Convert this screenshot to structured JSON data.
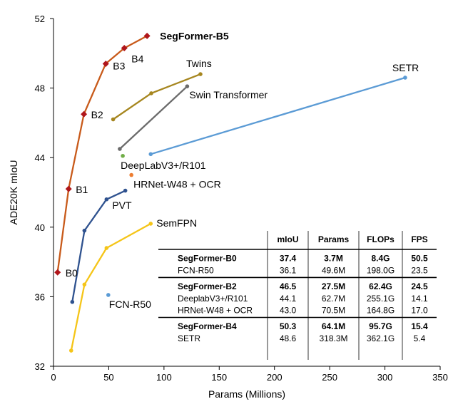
{
  "chart_data": {
    "type": "scatter",
    "title": "",
    "xlabel": "Params (Millions)",
    "ylabel": "ADE20K mIoU",
    "xlim": [
      0,
      350
    ],
    "ylim": [
      32,
      52
    ],
    "xticks": [
      0,
      50,
      100,
      150,
      200,
      250,
      300,
      350
    ],
    "yticks": [
      32,
      36,
      40,
      44,
      48,
      52
    ],
    "grid": false,
    "series": [
      {
        "name": "SegFormer",
        "color": "#c85a1a",
        "markerColor": "#b0161b",
        "marker": "diamond",
        "points": [
          {
            "x": 3.7,
            "y": 37.4,
            "label": "B0"
          },
          {
            "x": 13.7,
            "y": 42.2,
            "label": "B1"
          },
          {
            "x": 27.5,
            "y": 46.5,
            "label": "B2"
          },
          {
            "x": 47.3,
            "y": 49.4,
            "label": "B3"
          },
          {
            "x": 64.1,
            "y": 50.3,
            "label": "B4"
          },
          {
            "x": 84.7,
            "y": 51.0,
            "label": "SegFormer-B5"
          }
        ]
      },
      {
        "name": "Twins",
        "color": "#a6861f",
        "marker": "circle",
        "points": [
          {
            "x": 54,
            "y": 46.2
          },
          {
            "x": 88.5,
            "y": 47.7
          },
          {
            "x": 133,
            "y": 48.8
          }
        ],
        "label": "Twins"
      },
      {
        "name": "Swin Transformer",
        "color": "#6b6b6b",
        "marker": "circle",
        "points": [
          {
            "x": 60,
            "y": 44.5
          },
          {
            "x": 121,
            "y": 48.1
          }
        ],
        "label": "Swin Transformer"
      },
      {
        "name": "SETR",
        "color": "#5b9bd5",
        "marker": "circle",
        "points": [
          {
            "x": 88,
            "y": 44.2
          },
          {
            "x": 318.3,
            "y": 48.6
          }
        ],
        "label": "SETR"
      },
      {
        "name": "PVT",
        "color": "#2f528f",
        "marker": "circle",
        "points": [
          {
            "x": 17,
            "y": 35.7
          },
          {
            "x": 28,
            "y": 39.8
          },
          {
            "x": 48,
            "y": 41.6
          },
          {
            "x": 65,
            "y": 42.1
          }
        ],
        "label": "PVT"
      },
      {
        "name": "SemFPN",
        "color": "#f5c518",
        "marker": "circle",
        "points": [
          {
            "x": 16,
            "y": 32.9
          },
          {
            "x": 28,
            "y": 36.7
          },
          {
            "x": 48,
            "y": 38.8
          },
          {
            "x": 88,
            "y": 40.2
          }
        ],
        "label": "SemFPN"
      },
      {
        "name": "DeepLabV3+/R101",
        "color": "#70ad47",
        "marker": "circle",
        "points": [
          {
            "x": 62.7,
            "y": 44.1
          }
        ],
        "label": "DeepLabV3+/R101"
      },
      {
        "name": "HRNet-W48 + OCR",
        "color": "#ed7d31",
        "marker": "circle",
        "points": [
          {
            "x": 70.5,
            "y": 43.0
          }
        ],
        "label": "HRNet-W48 + OCR"
      },
      {
        "name": "FCN-R50",
        "color": "#5b9bd5",
        "marker": "circle",
        "points": [
          {
            "x": 49.6,
            "y": 36.1
          }
        ],
        "label": "FCN-R50"
      }
    ],
    "table": {
      "columns": [
        "",
        "mIoU",
        "Params",
        "FLOPs",
        "FPS"
      ],
      "groups": [
        {
          "rows": [
            {
              "bold": true,
              "cells": [
                "SegFormer-B0",
                "37.4",
                "3.7M",
                "8.4G",
                "50.5"
              ]
            },
            {
              "bold": false,
              "cells": [
                "FCN-R50",
                "36.1",
                "49.6M",
                "198.0G",
                "23.5"
              ]
            }
          ]
        },
        {
          "rows": [
            {
              "bold": true,
              "cells": [
                "SegFormer-B2",
                "46.5",
                "27.5M",
                "62.4G",
                "24.5"
              ]
            },
            {
              "bold": false,
              "cells": [
                "DeeplabV3+/R101",
                "44.1",
                "62.7M",
                "255.1G",
                "14.1"
              ]
            },
            {
              "bold": false,
              "cells": [
                "HRNet-W48 + OCR",
                "43.0",
                "70.5M",
                "164.8G",
                "17.0"
              ]
            }
          ]
        },
        {
          "rows": [
            {
              "bold": true,
              "cells": [
                "SegFormer-B4",
                "50.3",
                "64.1M",
                "95.7G",
                "15.4"
              ]
            },
            {
              "bold": false,
              "cells": [
                "SETR",
                "48.6",
                "318.3M",
                "362.1G",
                "5.4"
              ]
            }
          ]
        }
      ]
    }
  }
}
